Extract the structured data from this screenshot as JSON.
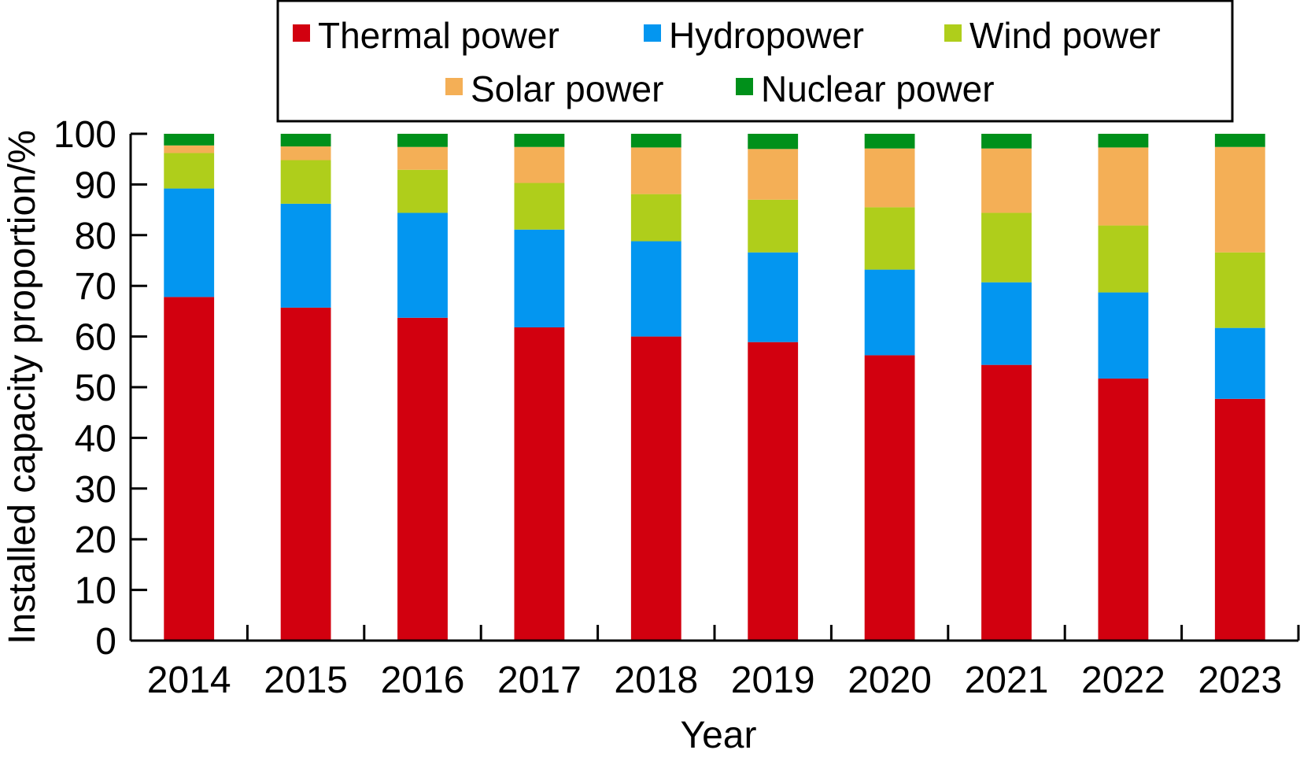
{
  "chart_data": {
    "type": "bar",
    "stacked": true,
    "title": "",
    "xlabel": "Year",
    "ylabel": "Installed capacity proportion/%",
    "ylim": [
      0,
      100
    ],
    "yticks": [
      0,
      10,
      20,
      30,
      40,
      50,
      60,
      70,
      80,
      90,
      100
    ],
    "grid": false,
    "legend_position": "top-center",
    "categories": [
      "2014",
      "2015",
      "2016",
      "2017",
      "2018",
      "2019",
      "2020",
      "2021",
      "2022",
      "2023"
    ],
    "series": [
      {
        "name": "Thermal power",
        "color": "#d2000f",
        "values": [
          67.8,
          65.7,
          63.7,
          61.8,
          60.0,
          58.9,
          56.3,
          54.4,
          51.7,
          47.7
        ]
      },
      {
        "name": "Hydropower",
        "color": "#0396f0",
        "values": [
          21.4,
          20.5,
          20.7,
          19.3,
          18.8,
          17.7,
          16.9,
          16.3,
          17.0,
          14.0
        ]
      },
      {
        "name": "Wind power",
        "color": "#afce1b",
        "values": [
          7.0,
          8.6,
          8.5,
          9.2,
          9.3,
          10.4,
          12.3,
          13.7,
          13.2,
          14.9
        ]
      },
      {
        "name": "Solar power",
        "color": "#f4af56",
        "values": [
          1.5,
          2.7,
          4.5,
          7.1,
          9.2,
          10.0,
          11.6,
          12.7,
          15.4,
          20.8
        ]
      },
      {
        "name": "Nuclear power",
        "color": "#00901a",
        "values": [
          2.3,
          2.5,
          2.6,
          2.6,
          2.7,
          3.0,
          2.9,
          2.9,
          2.7,
          2.6
        ]
      }
    ]
  }
}
